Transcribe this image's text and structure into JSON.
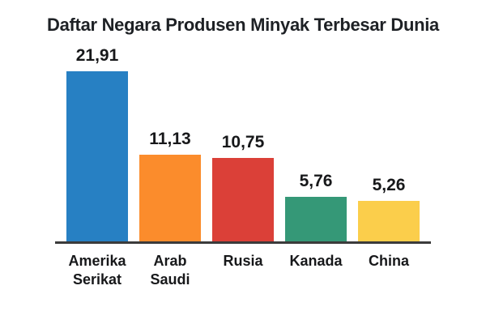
{
  "title": "Daftar Negara Produsen Minyak Terbesar Dunia",
  "chart_data": {
    "type": "bar",
    "title": "Daftar Negara Produsen Minyak Terbesar Dunia",
    "categories": [
      "Amerika Serikat",
      "Arab Saudi",
      "Rusia",
      "Kanada",
      "China"
    ],
    "values": [
      21.91,
      11.13,
      10.75,
      5.76,
      5.26
    ],
    "value_labels": [
      "21,91",
      "11,13",
      "10,75",
      "5,76",
      "5,26"
    ],
    "bar_colors": [
      "#2780C3",
      "#FB8C2C",
      "#DB4038",
      "#359877",
      "#FBCE4B"
    ],
    "xlabel": "",
    "ylabel": "",
    "ylim": [
      0,
      22
    ],
    "grid": false,
    "legend": false,
    "axis_color": "#3B3B3B",
    "value_label_position": "above-bar",
    "decimal_separator": "comma"
  }
}
